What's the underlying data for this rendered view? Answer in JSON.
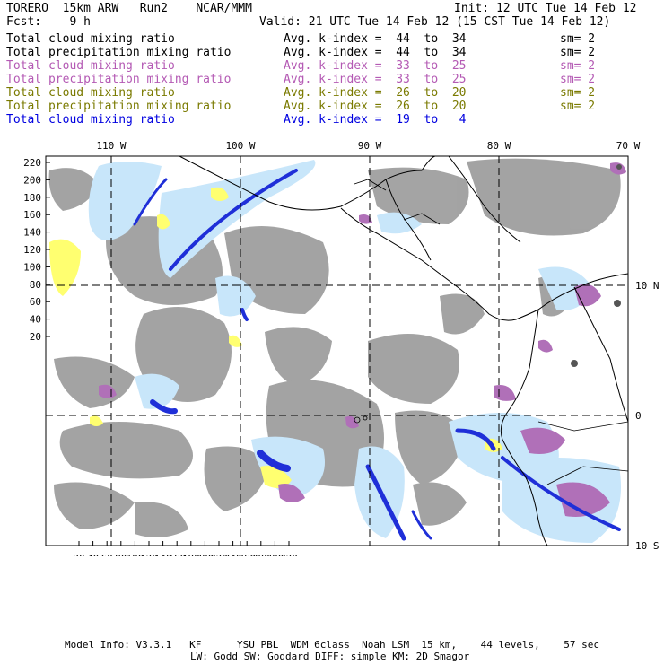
{
  "header": {
    "model": "TORERO  15km ARW   Run2    NCAR/MMM",
    "init": "Init: 12 UTC Tue 14 Feb 12",
    "fcst": "Fcst:    9 h",
    "valid": "Valid: 21 UTC Tue 14 Feb 12 (15 CST Tue 14 Feb 12)"
  },
  "legend": [
    {
      "label": "Total cloud mixing ratio",
      "kindex": "Avg. k-index =  44  to  34",
      "sm": "sm= 2",
      "color": "#000000"
    },
    {
      "label": "Total precipitation mixing ratio",
      "kindex": "Avg. k-index =  44  to  34",
      "sm": "sm= 2",
      "color": "#000000"
    },
    {
      "label": "Total cloud mixing ratio",
      "kindex": "Avg. k-index =  33  to  25",
      "sm": "sm= 2",
      "color": "#b45ab4"
    },
    {
      "label": "Total precipitation mixing ratio",
      "kindex": "Avg. k-index =  33  to  25",
      "sm": "sm= 2",
      "color": "#b45ab4"
    },
    {
      "label": "Total cloud mixing ratio",
      "kindex": "Avg. k-index =  26  to  20",
      "sm": "sm= 2",
      "color": "#7a7a00"
    },
    {
      "label": "Total precipitation mixing ratio",
      "kindex": "Avg. k-index =  26  to  20",
      "sm": "sm= 2",
      "color": "#7a7a00"
    },
    {
      "label": "Total cloud mixing ratio",
      "kindex": "Avg. k-index =  19  to   4",
      "sm": "",
      "color": "#0000e0"
    }
  ],
  "map": {
    "lon_labels": [
      "110 W",
      "100 W",
      "90 W",
      "80 W",
      "70 W"
    ],
    "lat_labels": [
      "10 N",
      "0",
      "10 S"
    ],
    "x_ticks": [
      "20",
      "40",
      "60",
      "80",
      "100",
      "120",
      "140",
      "160",
      "180",
      "200",
      "220",
      "240",
      "260",
      "280",
      "300",
      "320"
    ],
    "y_ticks": [
      "220",
      "200",
      "180",
      "160",
      "140",
      "120",
      "100",
      "80",
      "60",
      "40",
      "20"
    ],
    "colors": {
      "gray": "#9a9a9a",
      "purple": "#b070b8",
      "yellow": "#ffff70",
      "lightblue": "#c8e6fa",
      "blue": "#1f2fd8",
      "darkgray": "#555555"
    }
  },
  "footer": {
    "line1": "Model Info: V3.3.1   KF      YSU PBL  WDM 6class  Noah LSM  15 km,    44 levels,    57 sec",
    "line2": "LW: Godd SW: Goddard DIFF: simple KM: 2D Smagor"
  }
}
